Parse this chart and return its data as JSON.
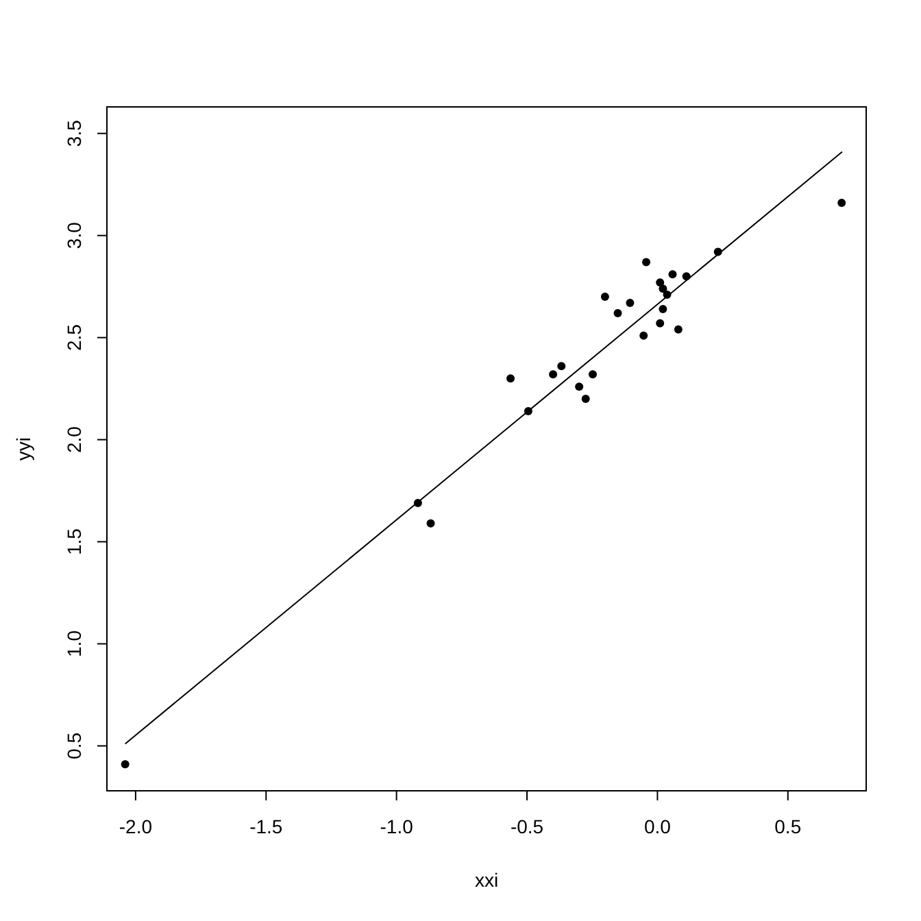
{
  "chart_data": {
    "type": "scatter",
    "xlabel": "xxi",
    "ylabel": "yyi",
    "xlim": [
      -2.11,
      0.8
    ],
    "ylim": [
      0.28,
      3.63
    ],
    "xticks": [
      {
        "value": -2,
        "label": "-2.0"
      },
      -1.5,
      {
        "value": -1,
        "label": "-1.0"
      },
      -0.5,
      {
        "value": 0,
        "label": "0.0"
      },
      0.5
    ],
    "yticks": [
      0.5,
      {
        "value": 1,
        "label": "1.0"
      },
      1.5,
      {
        "value": 2,
        "label": "2.0"
      },
      2.5,
      {
        "value": 3,
        "label": "3.0"
      },
      3.5
    ],
    "grid": false,
    "series": [
      {
        "color": "#000000",
        "marker": "circle",
        "x": [
          -2.04,
          -0.918,
          -0.869,
          -0.563,
          -0.495,
          -0.4,
          -0.368,
          -0.3,
          -0.275,
          -0.248,
          -0.201,
          -0.152,
          -0.105,
          -0.053,
          -0.043,
          0.01,
          0.021,
          0.037,
          0.021,
          0.01,
          0.058,
          0.08,
          0.111,
          0.232,
          0.706
        ],
        "values": [
          0.41,
          1.69,
          1.59,
          2.3,
          2.14,
          2.32,
          2.36,
          2.26,
          2.2,
          2.32,
          2.7,
          2.62,
          2.67,
          2.51,
          2.87,
          2.77,
          2.74,
          2.71,
          2.64,
          2.57,
          2.81,
          2.54,
          2.8,
          2.92,
          3.16
        ]
      },
      {
        "type": "line",
        "color": "#000000",
        "line_style": "solid",
        "x": [
          -2.04,
          0.708
        ],
        "values": [
          0.51,
          3.41
        ]
      }
    ]
  }
}
